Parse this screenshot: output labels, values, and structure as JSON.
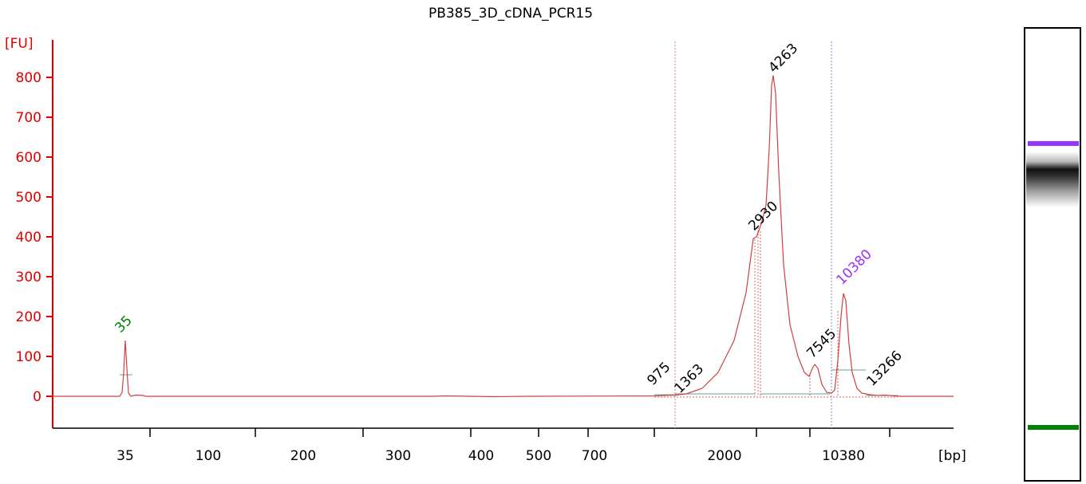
{
  "chart_data": {
    "type": "line",
    "title": "PB385_3D_cDNA_PCR15",
    "ylabel": "[FU]",
    "xlabel": "[bp]",
    "ylim": [
      -80,
      900
    ],
    "yticks": [
      0,
      100,
      200,
      300,
      400,
      500,
      600,
      700,
      800
    ],
    "xticks": [
      "35",
      "100",
      "200",
      "300",
      "400",
      "500",
      "700",
      "2000",
      "10380"
    ],
    "peak_labels": [
      {
        "text": "35",
        "fu": 140,
        "color": "#008000"
      },
      {
        "text": "975",
        "fu": 2,
        "color": "#000000"
      },
      {
        "text": "1363",
        "fu": 5,
        "color": "#000000"
      },
      {
        "text": "2930",
        "fu": 415,
        "color": "#000000"
      },
      {
        "text": "4263",
        "fu": 805,
        "color": "#000000"
      },
      {
        "text": "7545",
        "fu": 80,
        "color": "#000000"
      },
      {
        "text": "10380",
        "fu": 258,
        "color": "#9933ff"
      },
      {
        "text": "13266",
        "fu": 3,
        "color": "#000000"
      }
    ],
    "grid": false,
    "line_color": "#d04040",
    "gel_markers": {
      "upper_color": "#9933ff",
      "lower_color": "#008000"
    }
  }
}
